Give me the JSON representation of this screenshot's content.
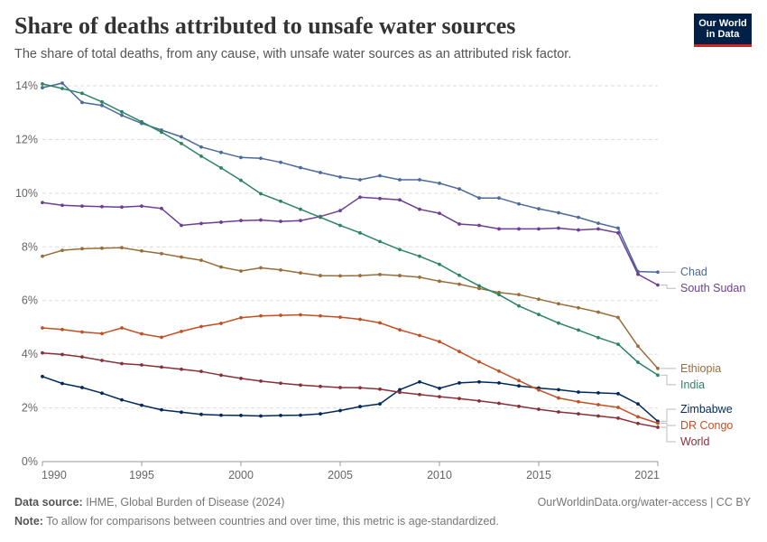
{
  "header": {
    "title": "Share of deaths attributed to unsafe water sources",
    "subtitle": "The share of total deaths, from any cause, with unsafe water sources as an attributed risk factor.",
    "logo_line1": "Our World",
    "logo_line2": "in Data"
  },
  "footer": {
    "source_label": "Data source:",
    "source_text": "IHME, Global Burden of Disease (2024)",
    "url": "OurWorldinData.org/water-access | CC BY",
    "note_label": "Note:",
    "note_text": "To allow for comparisons between countries and over time, this metric is age-standardized."
  },
  "chart_data": {
    "type": "line",
    "title": "Share of deaths attributed to unsafe water sources",
    "ylim": [
      0,
      14
    ],
    "xlim": [
      1990,
      2021
    ],
    "yticks": [
      0,
      2,
      4,
      6,
      8,
      10,
      12,
      14
    ],
    "ytick_labels": [
      "0%",
      "2%",
      "4%",
      "6%",
      "8%",
      "10%",
      "12%",
      "14%"
    ],
    "xticks": [
      1990,
      1995,
      2000,
      2005,
      2010,
      2015,
      2021
    ],
    "grid": true,
    "legend_placement": "right (labels at line ends)",
    "x": [
      1990,
      1991,
      1992,
      1993,
      1994,
      1995,
      1996,
      1997,
      1998,
      1999,
      2000,
      2001,
      2002,
      2003,
      2004,
      2005,
      2006,
      2007,
      2008,
      2009,
      2010,
      2011,
      2012,
      2013,
      2014,
      2015,
      2016,
      2017,
      2018,
      2019,
      2020,
      2021
    ],
    "series": [
      {
        "name": "Chad",
        "color": "#4c6a9c",
        "values": [
          13.93,
          14.1,
          13.38,
          13.27,
          12.9,
          12.6,
          12.35,
          12.1,
          11.72,
          11.52,
          11.33,
          11.3,
          11.15,
          10.95,
          10.77,
          10.6,
          10.5,
          10.65,
          10.5,
          10.5,
          10.37,
          10.16,
          9.82,
          9.82,
          9.6,
          9.42,
          9.27,
          9.1,
          8.88,
          8.7,
          7.08,
          7.06
        ]
      },
      {
        "name": "South Sudan",
        "color": "#6d3e91",
        "values": [
          9.65,
          9.55,
          9.52,
          9.5,
          9.48,
          9.52,
          9.43,
          8.8,
          8.87,
          8.92,
          8.98,
          9.0,
          8.95,
          8.98,
          9.13,
          9.35,
          9.85,
          9.8,
          9.75,
          9.4,
          9.25,
          8.85,
          8.8,
          8.67,
          8.67,
          8.67,
          8.7,
          8.63,
          8.67,
          8.52,
          6.98,
          6.58
        ]
      },
      {
        "name": "Ethiopia",
        "color": "#996d39",
        "values": [
          7.65,
          7.87,
          7.93,
          7.95,
          7.97,
          7.85,
          7.75,
          7.62,
          7.5,
          7.25,
          7.1,
          7.22,
          7.14,
          7.03,
          6.93,
          6.92,
          6.93,
          6.97,
          6.93,
          6.87,
          6.72,
          6.61,
          6.45,
          6.3,
          6.22,
          6.05,
          5.88,
          5.73,
          5.57,
          5.37,
          4.3,
          3.47
        ]
      },
      {
        "name": "India",
        "color": "#2c8465",
        "values": [
          14.07,
          13.9,
          13.72,
          13.4,
          13.03,
          12.66,
          12.27,
          11.85,
          11.38,
          10.94,
          10.48,
          9.98,
          9.7,
          9.4,
          9.1,
          8.8,
          8.52,
          8.2,
          7.9,
          7.65,
          7.35,
          6.94,
          6.55,
          6.22,
          5.8,
          5.48,
          5.16,
          4.9,
          4.62,
          4.37,
          3.7,
          3.22
        ]
      },
      {
        "name": "Zimbabwe",
        "color": "#00295b",
        "values": [
          3.17,
          2.91,
          2.76,
          2.55,
          2.3,
          2.1,
          1.93,
          1.84,
          1.76,
          1.73,
          1.72,
          1.7,
          1.72,
          1.73,
          1.78,
          1.9,
          2.05,
          2.15,
          2.68,
          2.97,
          2.73,
          2.93,
          2.97,
          2.93,
          2.82,
          2.74,
          2.68,
          2.59,
          2.56,
          2.53,
          2.15,
          1.5
        ]
      },
      {
        "name": "DR Congo",
        "color": "#c15025",
        "values": [
          4.98,
          4.92,
          4.83,
          4.77,
          4.98,
          4.76,
          4.63,
          4.85,
          5.03,
          5.15,
          5.36,
          5.43,
          5.45,
          5.47,
          5.43,
          5.38,
          5.3,
          5.17,
          4.91,
          4.7,
          4.47,
          4.1,
          3.72,
          3.37,
          3.02,
          2.67,
          2.37,
          2.23,
          2.12,
          2.02,
          1.67,
          1.43
        ]
      },
      {
        "name": "World",
        "color": "#883039",
        "values": [
          4.05,
          3.99,
          3.9,
          3.77,
          3.65,
          3.6,
          3.52,
          3.44,
          3.36,
          3.22,
          3.1,
          3.0,
          2.92,
          2.85,
          2.8,
          2.76,
          2.75,
          2.7,
          2.58,
          2.5,
          2.42,
          2.35,
          2.26,
          2.17,
          2.06,
          1.95,
          1.85,
          1.78,
          1.7,
          1.62,
          1.42,
          1.28
        ]
      }
    ]
  }
}
